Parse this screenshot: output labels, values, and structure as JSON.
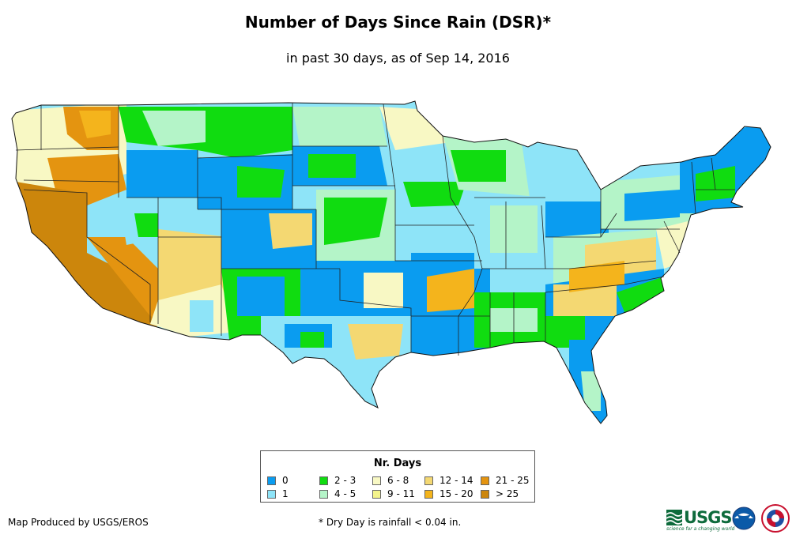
{
  "title": "Number of Days Since Rain (DSR)*",
  "subtitle": "in past 30 days, as of Sep 14, 2016",
  "legend": {
    "title": "Nr. Days",
    "items": [
      {
        "label": "0",
        "color": "#0a9cf0"
      },
      {
        "label": "1",
        "color": "#8ee4f8"
      },
      {
        "label": "2 - 3",
        "color": "#10dc10"
      },
      {
        "label": "4 - 5",
        "color": "#b4f4c8"
      },
      {
        "label": "6 - 8",
        "color": "#f8f8c4"
      },
      {
        "label": "9 - 11",
        "color": "#f4f48c"
      },
      {
        "label": "12 - 14",
        "color": "#f4d872"
      },
      {
        "label": "15 - 20",
        "color": "#f4b41c"
      },
      {
        "label": "21 - 25",
        "color": "#e49410"
      },
      {
        "label": "> 25",
        "color": "#cc860c"
      }
    ]
  },
  "credit": "Map Produced by USGS/EROS",
  "footnote": "* Dry Day is rainfall < 0.04 in.",
  "logos": {
    "usgs_text": "USGS",
    "usgs_tagline": "science for a changing world",
    "noaa": "noaa-logo",
    "nws": "nws-logo"
  }
}
